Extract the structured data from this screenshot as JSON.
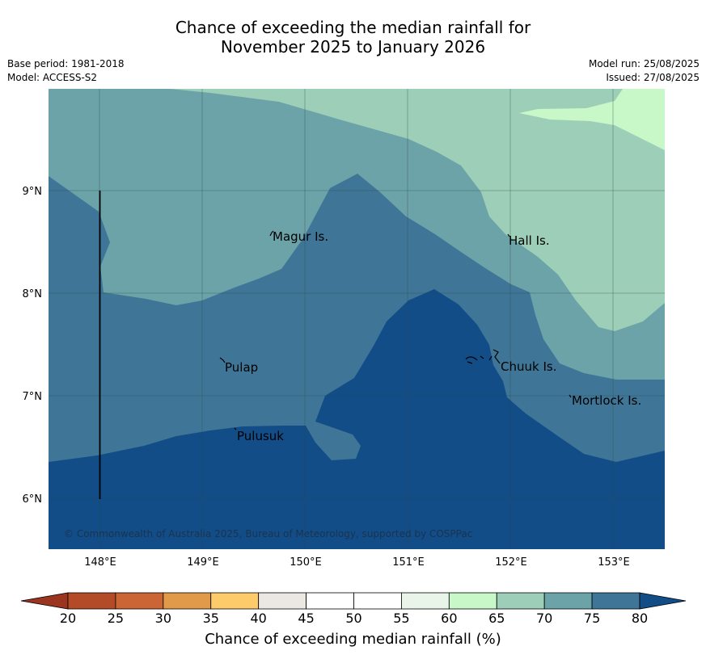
{
  "header": {
    "title_line1": "Chance of exceeding the median rainfall for",
    "title_line2": "November 2025 to January 2026",
    "base_period": "Base period: 1981-2018",
    "model": "Model: ACCESS-S2",
    "model_run": "Model run: 25/08/2025",
    "issued": "Issued: 27/08/2025"
  },
  "map": {
    "longitude_labels": [
      "148°E",
      "149°E",
      "150°E",
      "151°E",
      "152°E",
      "153°E"
    ],
    "latitude_labels": [
      "9°N",
      "8°N",
      "7°N",
      "6°N"
    ],
    "places": [
      "Magur Is.",
      "Hall Is.",
      "Pulap",
      "Chuuk Is.",
      "Mortlock Is.",
      "Pulusuk"
    ],
    "copyright": "© Commonwealth of Australia 2025, Bureau of Meteorology, supported by COSPPac",
    "colors": {
      "band_60_65": "#c8f7c8",
      "band_65_70": "#9dcfb8",
      "band_70_75": "#6ba3a8",
      "band_75_80": "#3f7697",
      "band_80_plus": "#124d88"
    }
  },
  "colorbar": {
    "ticks": [
      "20",
      "25",
      "30",
      "35",
      "40",
      "45",
      "50",
      "55",
      "60",
      "65",
      "70",
      "75",
      "80"
    ],
    "label": "Chance of exceeding median rainfall (%)",
    "colors": [
      "#9c3520",
      "#b34a28",
      "#cc6535",
      "#e09a4a",
      "#fdcb6a",
      "#ebe8e4",
      "#ffffff",
      "#ffffff",
      "#e8f5e8",
      "#c8f7c8",
      "#9dcfb8",
      "#6ba3a8",
      "#3f7697",
      "#124d88"
    ]
  }
}
